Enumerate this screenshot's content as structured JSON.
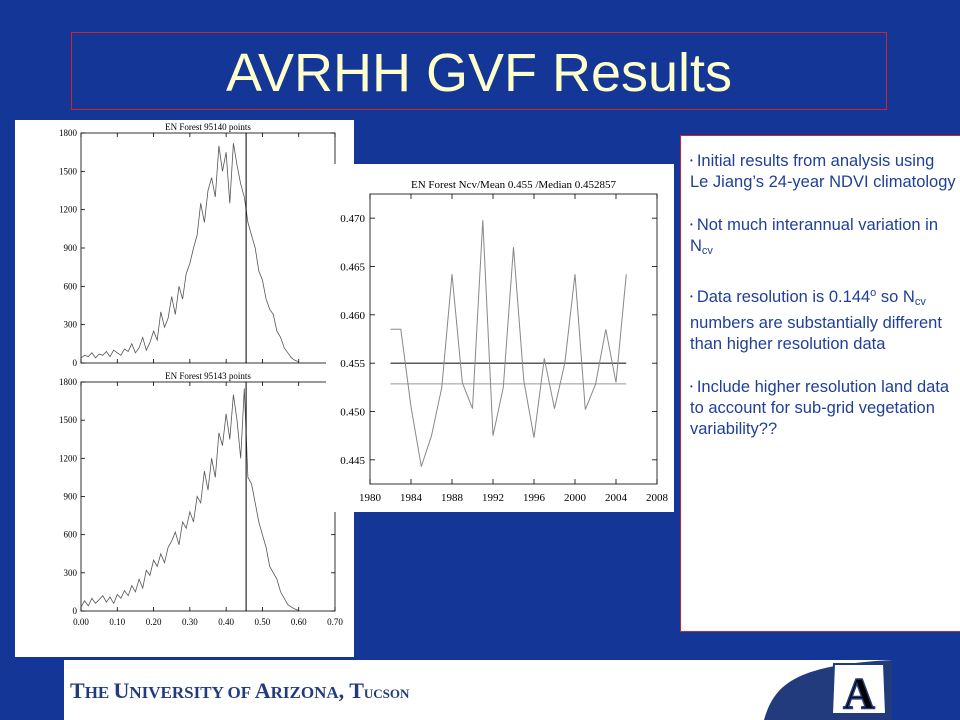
{
  "title": "AVRHH GVF Results",
  "notes": [
    {
      "segments": [
        {
          "t": "Initial results from analysis using Le Jiang’s 24-year NDVI climatology"
        }
      ]
    },
    {
      "segments": [
        {
          "t": "Not much interannual variation in N"
        },
        {
          "t": "cv",
          "sub": true
        }
      ]
    },
    {
      "segments": [
        {
          "t": "Data resolution is 0.144"
        },
        {
          "t": "o",
          "sup": true
        },
        {
          "t": " so N"
        },
        {
          "t": "cv",
          "sub": true
        },
        {
          "t": " numbers are substantially different than higher resolution data"
        }
      ]
    },
    {
      "segments": [
        {
          "t": "Include higher resolution land data to account for sub-grid vegetation variability??"
        }
      ]
    }
  ],
  "footer": {
    "t1": "T",
    "t2": "HE ",
    "u1": "U",
    "u2": "NIVERSITY OF ",
    "a1": "A",
    "a2": "RIZONA",
    "c1": ", T",
    "c2": "UCSON",
    "logo_letter": "A"
  },
  "chart_data": [
    {
      "type": "line",
      "title": "EN Forest 95140 points",
      "x_ticks": [
        "0.00",
        "0.10",
        "0.20",
        "0.30",
        "0.40",
        "0.50",
        "0.60",
        "0.70"
      ],
      "y_ticks": [
        "0",
        "300",
        "600",
        "900",
        "1200",
        "1500",
        "1800"
      ],
      "xlim": [
        0.0,
        0.7
      ],
      "ylim": [
        0,
        1800
      ],
      "vline": 0.455,
      "series": [
        {
          "x": [
            0.0,
            0.01,
            0.02,
            0.03,
            0.04,
            0.05,
            0.06,
            0.07,
            0.08,
            0.09,
            0.1,
            0.11,
            0.12,
            0.13,
            0.14,
            0.15,
            0.16,
            0.17,
            0.18,
            0.19,
            0.2,
            0.21,
            0.22,
            0.23,
            0.24,
            0.25,
            0.26,
            0.27,
            0.28,
            0.29,
            0.3,
            0.31,
            0.32,
            0.33,
            0.34,
            0.35,
            0.36,
            0.37,
            0.38,
            0.39,
            0.4,
            0.41,
            0.42,
            0.43,
            0.44,
            0.45,
            0.46,
            0.47,
            0.48,
            0.49,
            0.5,
            0.51,
            0.52,
            0.53,
            0.54,
            0.55,
            0.56,
            0.57,
            0.58,
            0.59,
            0.6
          ],
          "y": [
            40,
            60,
            50,
            80,
            40,
            70,
            60,
            90,
            50,
            100,
            80,
            60,
            110,
            90,
            150,
            80,
            120,
            200,
            100,
            160,
            250,
            180,
            400,
            280,
            350,
            520,
            380,
            600,
            500,
            700,
            780,
            900,
            1000,
            1250,
            1100,
            1350,
            1450,
            1300,
            1700,
            1500,
            1650,
            1250,
            1720,
            1550,
            1400,
            1300,
            1100,
            1000,
            900,
            720,
            650,
            500,
            420,
            380,
            250,
            200,
            120,
            80,
            40,
            20,
            10
          ]
        }
      ]
    },
    {
      "type": "line",
      "title": "EN Forest 95143 points",
      "x_ticks": [
        "0.00",
        "0.10",
        "0.20",
        "0.30",
        "0.40",
        "0.50",
        "0.60",
        "0.70"
      ],
      "y_ticks": [
        "0",
        "300",
        "600",
        "900",
        "1200",
        "1500",
        "1800"
      ],
      "xlim": [
        0.0,
        0.7
      ],
      "ylim": [
        0,
        1800
      ],
      "vline": 0.455,
      "series": [
        {
          "x": [
            0.0,
            0.01,
            0.02,
            0.03,
            0.04,
            0.05,
            0.06,
            0.07,
            0.08,
            0.09,
            0.1,
            0.11,
            0.12,
            0.13,
            0.14,
            0.15,
            0.16,
            0.17,
            0.18,
            0.19,
            0.2,
            0.21,
            0.22,
            0.23,
            0.24,
            0.25,
            0.26,
            0.27,
            0.28,
            0.29,
            0.3,
            0.31,
            0.32,
            0.33,
            0.34,
            0.35,
            0.36,
            0.37,
            0.38,
            0.39,
            0.4,
            0.41,
            0.42,
            0.43,
            0.44,
            0.45,
            0.46,
            0.47,
            0.48,
            0.49,
            0.5,
            0.51,
            0.52,
            0.53,
            0.54,
            0.55,
            0.56,
            0.57,
            0.58,
            0.59,
            0.6
          ],
          "y": [
            30,
            80,
            40,
            100,
            60,
            90,
            120,
            70,
            110,
            60,
            130,
            100,
            160,
            120,
            200,
            150,
            250,
            180,
            320,
            280,
            400,
            350,
            450,
            380,
            500,
            550,
            620,
            520,
            700,
            650,
            780,
            700,
            900,
            850,
            1100,
            950,
            1200,
            1050,
            1400,
            1300,
            1550,
            1350,
            1700,
            1500,
            1200,
            1750,
            1050,
            1000,
            850,
            700,
            600,
            500,
            350,
            300,
            250,
            150,
            100,
            50,
            30,
            15,
            5
          ]
        }
      ]
    },
    {
      "type": "line",
      "title": "EN Forest Ncv/Mean 0.455 /Median 0.452857",
      "x_ticks": [
        "1980",
        "1984",
        "1988",
        "1992",
        "1996",
        "2000",
        "2004",
        "2008"
      ],
      "y_ticks": [
        "0.445",
        "0.450",
        "0.455",
        "0.460",
        "0.465",
        "0.470"
      ],
      "xlim": [
        1980,
        2008
      ],
      "ylim": [
        0.4425,
        0.4725
      ],
      "mean": 0.455,
      "median": 0.452857,
      "series": [
        {
          "x": [
            1982,
            1983,
            1984,
            1985,
            1986,
            1987,
            1988,
            1989,
            1990,
            1991,
            1992,
            1993,
            1994,
            1995,
            1996,
            1997,
            1998,
            1999,
            2000,
            2001,
            2002,
            2003,
            2004,
            2005
          ],
          "y": [
            0.4585,
            0.4585,
            0.4505,
            0.4443,
            0.4475,
            0.4525,
            0.4642,
            0.453,
            0.4503,
            0.4698,
            0.4475,
            0.4525,
            0.467,
            0.4532,
            0.4473,
            0.4555,
            0.4503,
            0.455,
            0.4642,
            0.4502,
            0.4528,
            0.4585,
            0.453,
            0.4642
          ]
        }
      ]
    }
  ]
}
